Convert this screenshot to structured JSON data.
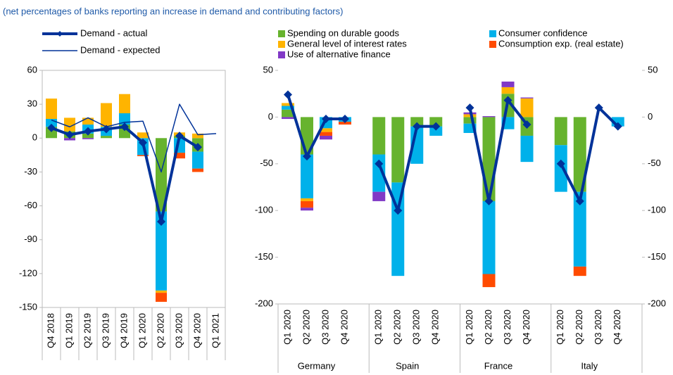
{
  "subtitle": "(net percentages of banks reporting an increase in demand and contributing factors)",
  "chart_data": [
    {
      "type": "bar",
      "categories": [
        "Q4 2018",
        "Q1 2019",
        "Q2 2019",
        "Q3 2019",
        "Q4 2019",
        "Q1 2020",
        "Q2 2020",
        "Q3 2020",
        "Q4 2020",
        "Q1 2021"
      ],
      "series": [
        {
          "name": "Spending on durable goods",
          "type": "bar",
          "color": "#67b32e",
          "values": [
            10,
            6,
            4,
            2,
            12,
            0,
            -65,
            2,
            -12,
            null
          ]
        },
        {
          "name": "Consumer confidence",
          "type": "bar",
          "color": "#00b1ea",
          "values": [
            7,
            0,
            8,
            8,
            10,
            -15,
            -70,
            -13,
            -15,
            null
          ]
        },
        {
          "name": "General level of interest rates",
          "type": "bar",
          "color": "#ffb400",
          "values": [
            18,
            12,
            6,
            21,
            17,
            5,
            -2,
            3,
            4,
            null
          ]
        },
        {
          "name": "Consumption exp. (real estate)",
          "type": "bar",
          "color": "#ff4b00",
          "values": [
            0,
            0,
            0,
            0,
            0,
            -1,
            -8,
            -5,
            -3,
            null
          ]
        },
        {
          "name": "Use of alternative finance",
          "type": "bar",
          "color": "#8139c6",
          "values": [
            0,
            -2,
            -1,
            0,
            0,
            0,
            0,
            0,
            0,
            null
          ]
        },
        {
          "name": "Demand - actual",
          "type": "line",
          "color": "#003299",
          "linewidth": 4,
          "marker": "diamond",
          "values": [
            9,
            3,
            6,
            8,
            10,
            -4,
            -74,
            2,
            -8,
            null
          ]
        },
        {
          "name": "Demand - expected",
          "type": "line",
          "color": "#003299",
          "linewidth": 1.5,
          "values": [
            16,
            10,
            18,
            10,
            14,
            15,
            -30,
            30,
            3,
            4
          ]
        }
      ],
      "ylim": [
        -150,
        60
      ],
      "yticks": [
        -150,
        -120,
        -90,
        -60,
        -30,
        0,
        30,
        60
      ]
    },
    {
      "type": "bar",
      "groups": [
        "Germany",
        "Spain",
        "France",
        "Italy"
      ],
      "categories": [
        "Q1 2020",
        "Q2 2020",
        "Q3 2020",
        "Q4 2020",
        "Q1 2020",
        "Q2 2020",
        "Q3 2020",
        "Q4 2020",
        "Q1 2020",
        "Q2 2020",
        "Q3 2020",
        "Q4 2020",
        "Q1 2020",
        "Q2 2020",
        "Q3 2020",
        "Q4 2020"
      ],
      "series": [
        {
          "type": "bar",
          "values": [
            8,
            -40,
            0,
            0,
            -40,
            -70,
            -10,
            -10,
            -7,
            -90,
            25,
            -20,
            -30,
            -80,
            0,
            0
          ]
        },
        {
          "type": "bar",
          "values": [
            4,
            -47,
            -12,
            -5,
            -40,
            -100,
            -40,
            -10,
            -10,
            -78,
            -13,
            -28,
            -50,
            -80,
            0,
            -10
          ]
        },
        {
          "type": "bar",
          "values": [
            3,
            -3,
            -4,
            0,
            0,
            0,
            0,
            0,
            3,
            0,
            7,
            20,
            0,
            0,
            0,
            0
          ]
        },
        {
          "type": "bar",
          "values": [
            0,
            -7,
            -4,
            -3,
            0,
            0,
            0,
            0,
            0,
            -14,
            0,
            0,
            0,
            -10,
            0,
            0
          ]
        },
        {
          "type": "bar",
          "values": [
            -2,
            -3,
            -4,
            0,
            -10,
            0,
            0,
            0,
            2,
            1,
            6,
            1,
            0,
            0,
            0,
            0
          ]
        },
        {
          "type": "line",
          "values": [
            24,
            -42,
            -2,
            -2,
            -50,
            -100,
            -10,
            -10,
            10,
            -90,
            18,
            -8,
            -50,
            -90,
            10,
            -10
          ]
        }
      ],
      "ylim": [
        -200,
        50
      ],
      "yticks": [
        -200,
        -150,
        -100,
        -50,
        0,
        50
      ],
      "y2lim": [
        -200,
        50
      ],
      "y2ticks": [
        -200,
        -150,
        -100,
        -50,
        0,
        50
      ]
    }
  ]
}
